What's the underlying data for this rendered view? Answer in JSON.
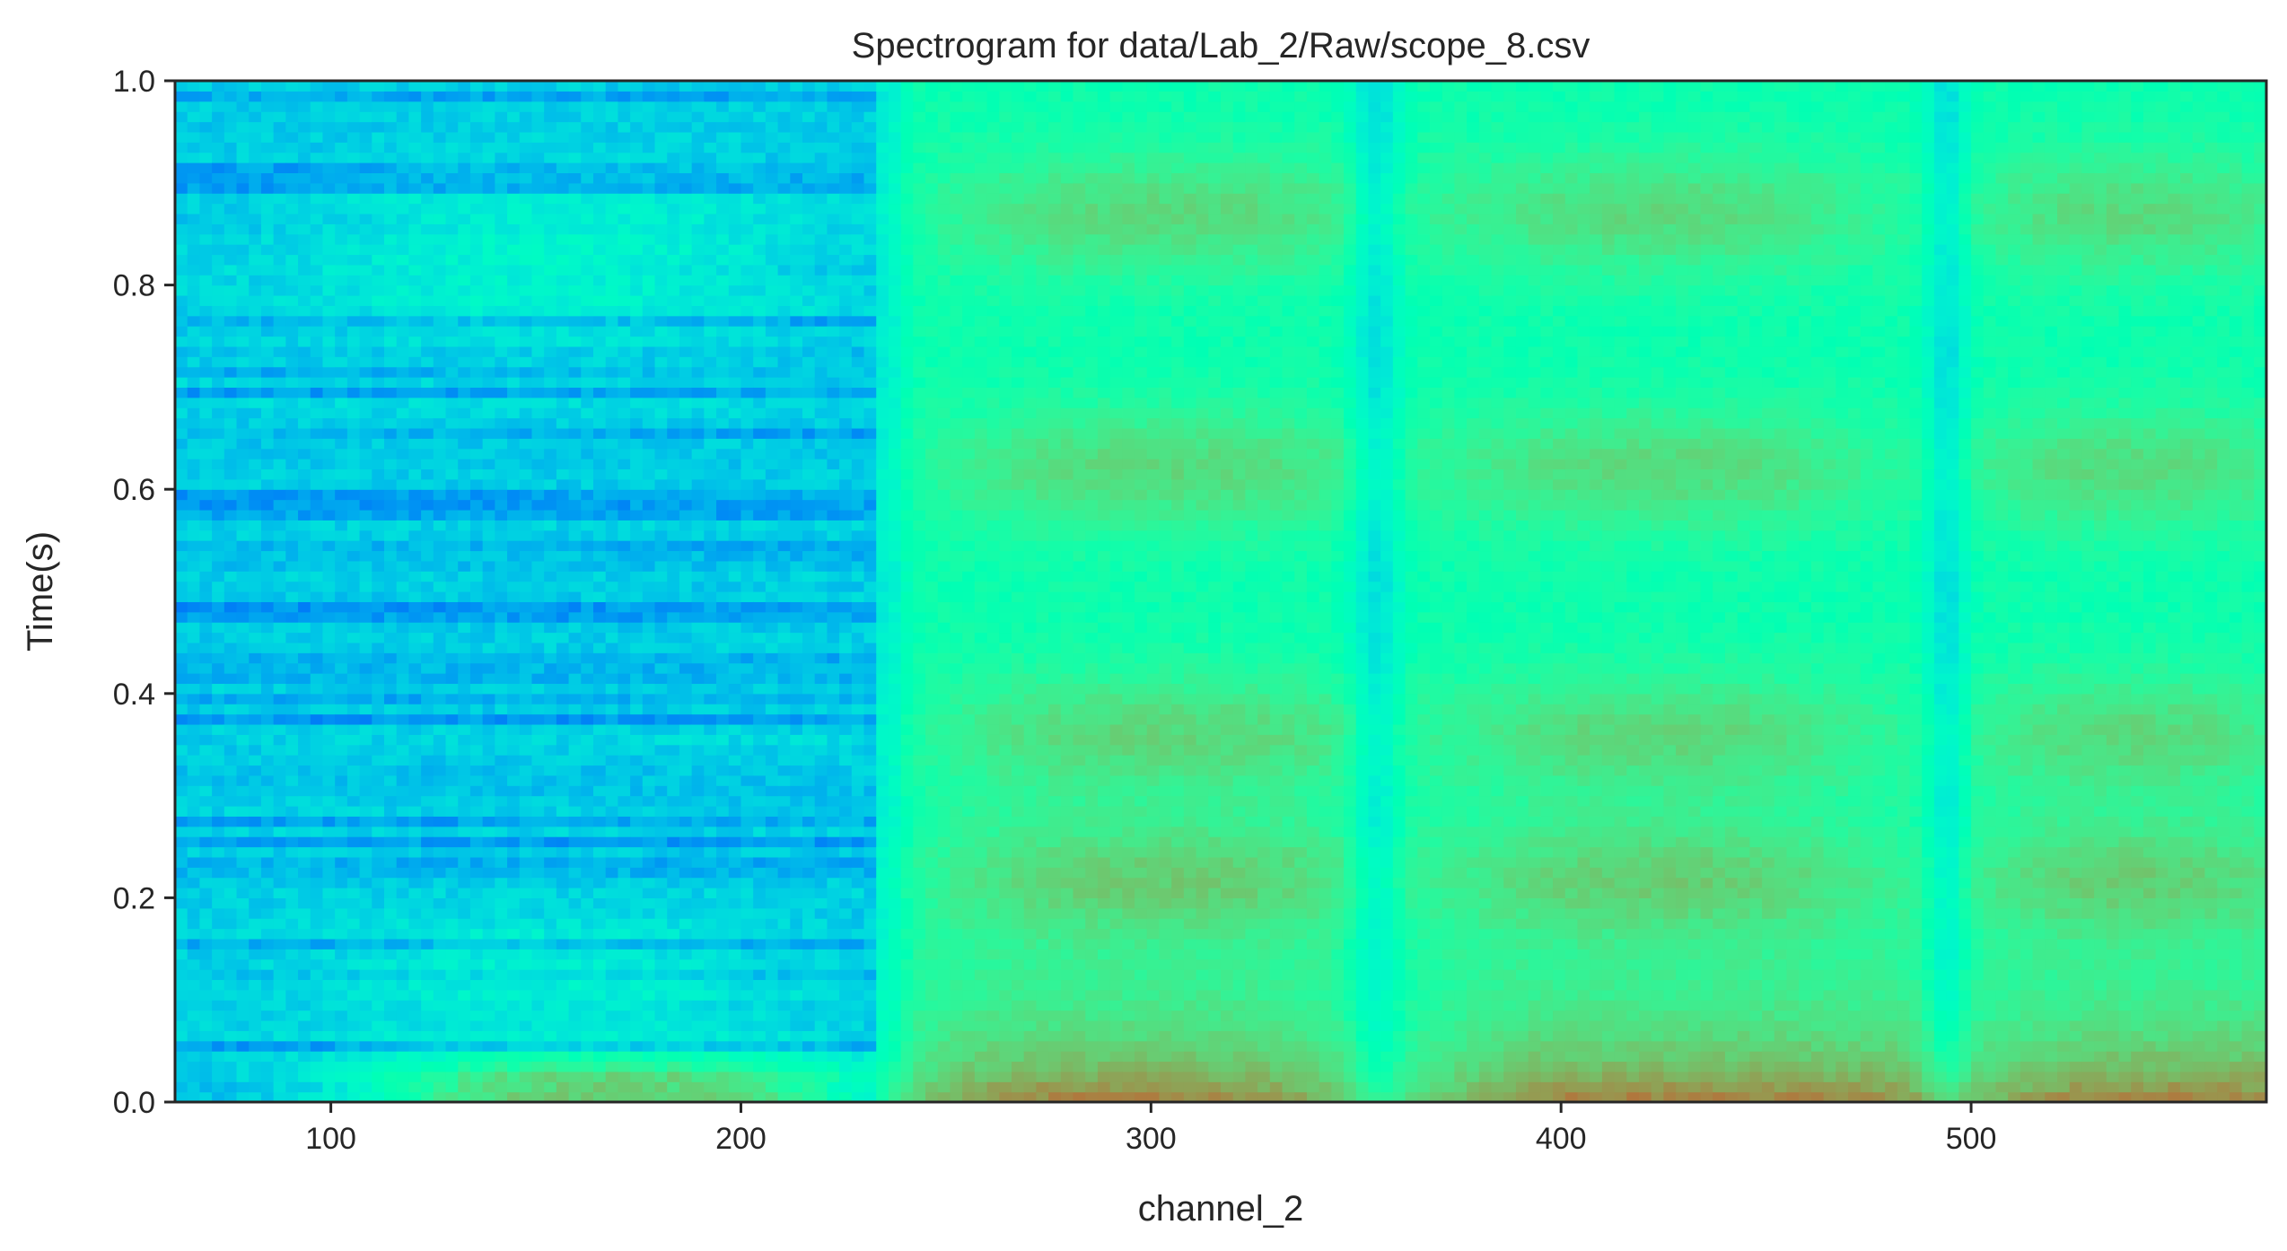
{
  "chart_data": {
    "type": "heatmap",
    "title": "Spectrogram for data/Lab_2/Raw/scope_8.csv",
    "xlabel": "channel_2",
    "ylabel": "Time(s)",
    "xlim": [
      62,
      572
    ],
    "ylim": [
      0.0,
      1.0
    ],
    "x_ticks": [
      100,
      200,
      300,
      400,
      500
    ],
    "x_tick_labels": [
      "100",
      "200",
      "300",
      "400",
      "500"
    ],
    "y_ticks": [
      0.0,
      0.2,
      0.4,
      0.6,
      0.8,
      1.0
    ],
    "y_tick_labels": [
      "0.0",
      "0.2",
      "0.4",
      "0.6",
      "0.8",
      "1.0"
    ],
    "colormap": "rainbow",
    "grid": false,
    "x_bin_width": 3,
    "time_bins": 100,
    "regions": [
      {
        "x_range": [
          62,
          232
        ],
        "description": "low intensity, banded",
        "level": 0.28
      },
      {
        "x_range": [
          232,
          365
        ],
        "description": "high intensity band",
        "level": 0.68
      },
      {
        "x_range": [
          365,
          495
        ],
        "description": "high intensity band",
        "level": 0.7
      },
      {
        "x_range": [
          495,
          572
        ],
        "description": "high intensity band",
        "level": 0.66
      }
    ],
    "notes": "Intensity is strongest near time 0.0 (red) and decreases with time; vertical low-intensity stripes near x≈355 and x≈494."
  }
}
